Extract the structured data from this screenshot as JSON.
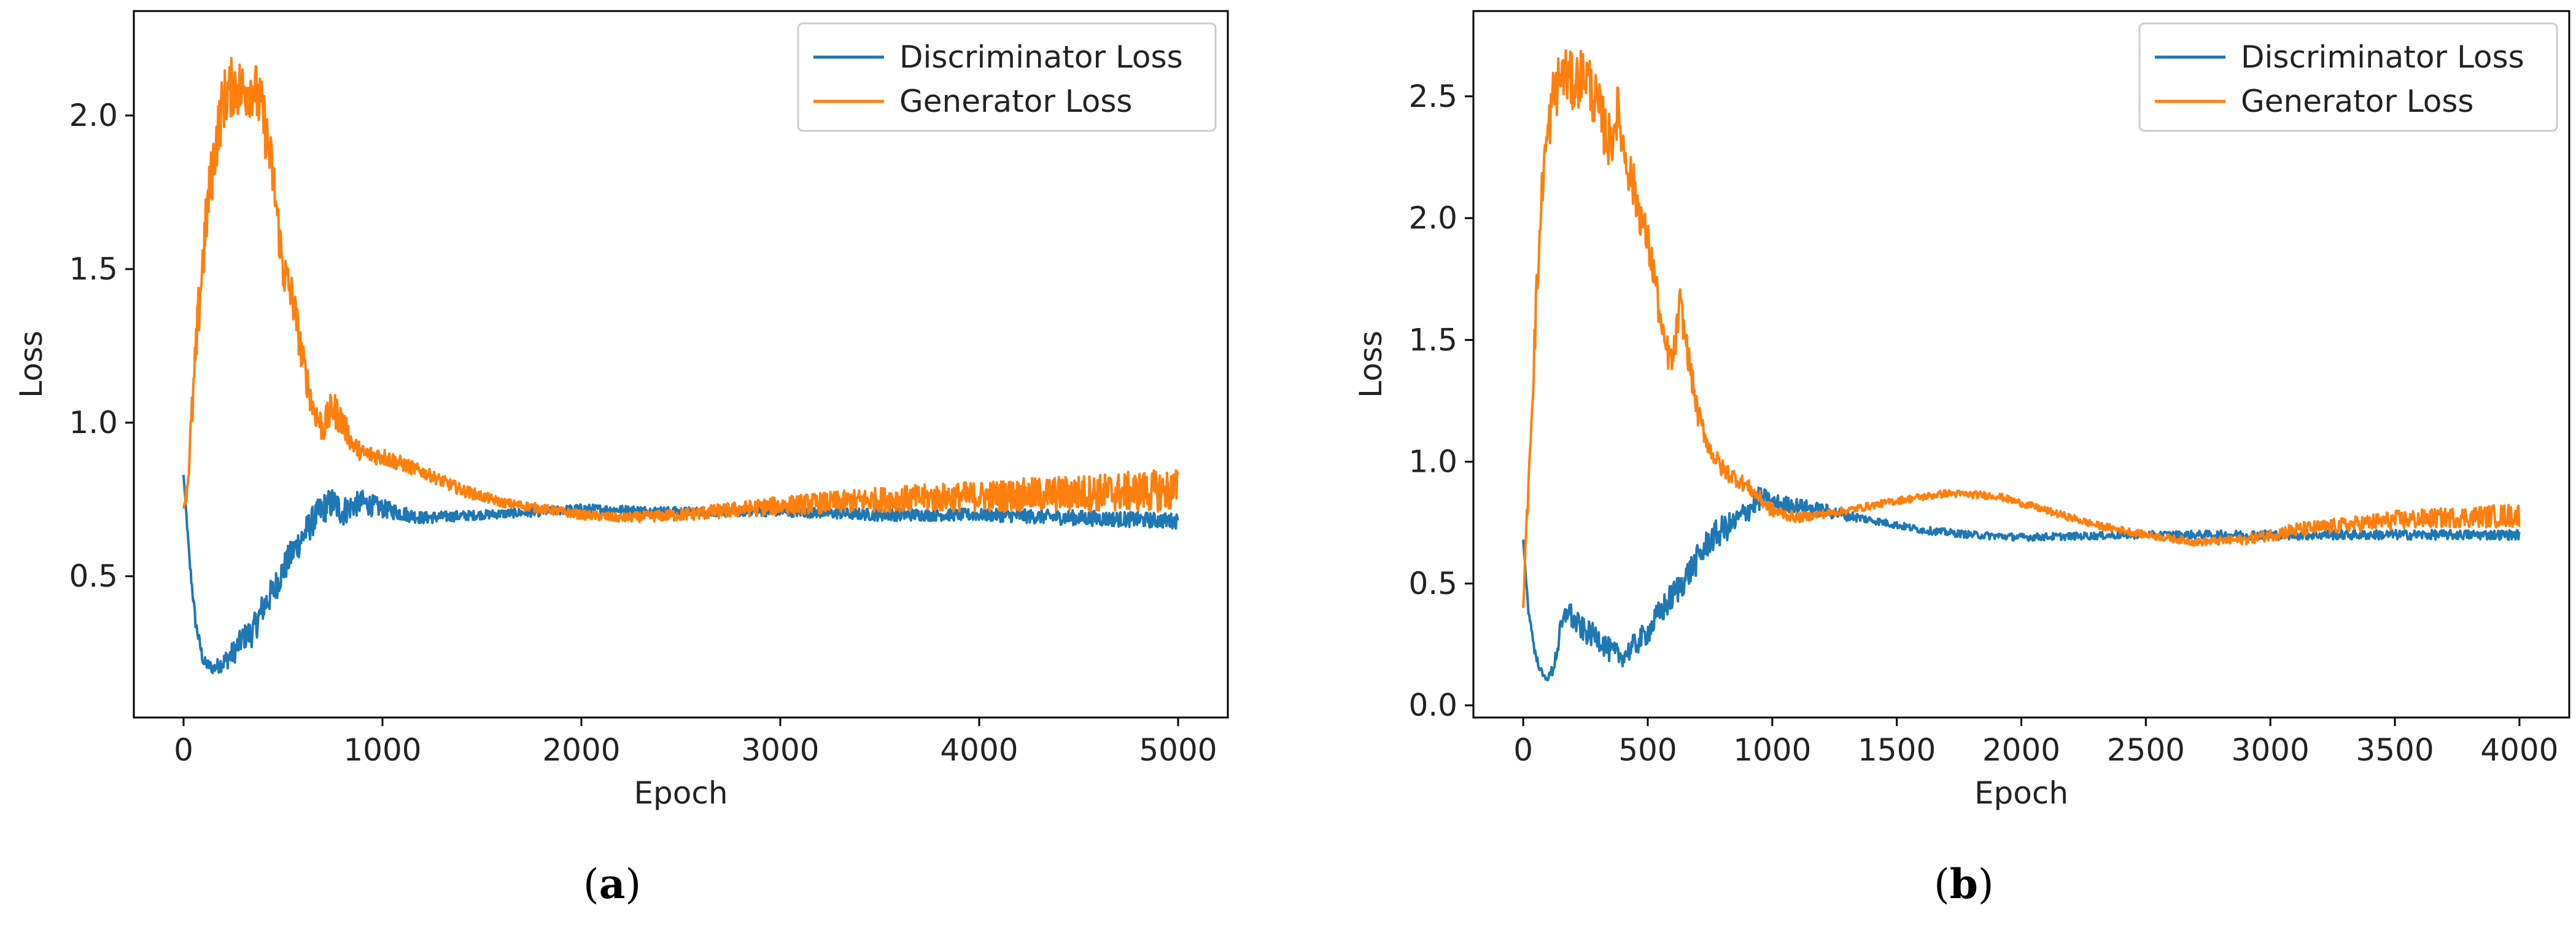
{
  "chart_data": [
    {
      "type": "line",
      "panel_label": "a",
      "xlabel": "Epoch",
      "ylabel": "Loss",
      "xlim": [
        -250,
        5250
      ],
      "ylim": [
        0.04,
        2.34
      ],
      "xticks": [
        0,
        1000,
        2000,
        3000,
        4000,
        5000
      ],
      "yticks": [
        0.5,
        1.0,
        1.5,
        2.0
      ],
      "ytick_labels": [
        "0.5",
        "1.0",
        "1.5",
        "2.0"
      ],
      "legend": {
        "position": "top-right",
        "entries": [
          "Discriminator Loss",
          "Generator Loss"
        ]
      },
      "series": [
        {
          "name": "Discriminator Loss",
          "color": "#1f77b4",
          "x": [
            0,
            30,
            60,
            100,
            150,
            200,
            250,
            300,
            350,
            400,
            450,
            500,
            550,
            600,
            650,
            700,
            750,
            800,
            850,
            900,
            1000,
            1200,
            1500,
            1800,
            2000,
            2500,
            3000,
            3500,
            4000,
            4500,
            5000
          ],
          "y": [
            0.83,
            0.55,
            0.35,
            0.22,
            0.2,
            0.22,
            0.25,
            0.3,
            0.32,
            0.4,
            0.45,
            0.52,
            0.58,
            0.63,
            0.68,
            0.72,
            0.74,
            0.71,
            0.73,
            0.74,
            0.72,
            0.69,
            0.7,
            0.71,
            0.72,
            0.71,
            0.71,
            0.7,
            0.7,
            0.69,
            0.68
          ],
          "noise": [
            0.0,
            0.02,
            0.02,
            0.02,
            0.02,
            0.03,
            0.04,
            0.04,
            0.05,
            0.05,
            0.05,
            0.05,
            0.05,
            0.05,
            0.05,
            0.05,
            0.05,
            0.05,
            0.04,
            0.04,
            0.03,
            0.02,
            0.015,
            0.015,
            0.015,
            0.015,
            0.015,
            0.02,
            0.02,
            0.025,
            0.025
          ]
        },
        {
          "name": "Generator Loss",
          "color": "#ff7f0e",
          "x": [
            0,
            20,
            40,
            80,
            120,
            160,
            200,
            250,
            300,
            350,
            400,
            450,
            500,
            550,
            600,
            650,
            700,
            750,
            800,
            850,
            900,
            1000,
            1200,
            1400,
            1600,
            1800,
            2000,
            2200,
            2500,
            3000,
            3500,
            4000,
            4500,
            5000
          ],
          "y": [
            0.72,
            0.8,
            1.0,
            1.4,
            1.7,
            1.9,
            2.05,
            2.1,
            2.08,
            2.1,
            2.0,
            1.8,
            1.5,
            1.4,
            1.2,
            1.05,
            0.98,
            1.05,
            1.0,
            0.93,
            0.9,
            0.89,
            0.84,
            0.78,
            0.74,
            0.72,
            0.7,
            0.69,
            0.7,
            0.73,
            0.75,
            0.76,
            0.77,
            0.78
          ],
          "noise": [
            0.0,
            0.05,
            0.07,
            0.1,
            0.1,
            0.1,
            0.1,
            0.1,
            0.1,
            0.1,
            0.1,
            0.09,
            0.08,
            0.07,
            0.06,
            0.05,
            0.05,
            0.06,
            0.05,
            0.03,
            0.03,
            0.03,
            0.02,
            0.02,
            0.015,
            0.015,
            0.015,
            0.015,
            0.02,
            0.03,
            0.04,
            0.05,
            0.06,
            0.07
          ]
        }
      ]
    },
    {
      "type": "line",
      "panel_label": "b",
      "xlabel": "Epoch",
      "ylabel": "Loss",
      "xlim": [
        -200,
        4200
      ],
      "ylim": [
        -0.05,
        2.85
      ],
      "xticks": [
        0,
        500,
        1000,
        1500,
        2000,
        2500,
        3000,
        3500,
        4000
      ],
      "yticks": [
        0.0,
        0.5,
        1.0,
        1.5,
        2.0,
        2.5
      ],
      "ytick_labels": [
        "0.0",
        "0.5",
        "1.0",
        "1.5",
        "2.0",
        "2.5"
      ],
      "legend": {
        "position": "top-right",
        "entries": [
          "Discriminator Loss",
          "Generator Loss"
        ]
      },
      "series": [
        {
          "name": "Discriminator Loss",
          "color": "#1f77b4",
          "x": [
            0,
            20,
            50,
            80,
            100,
            120,
            150,
            180,
            200,
            250,
            300,
            350,
            400,
            450,
            500,
            550,
            600,
            650,
            700,
            750,
            800,
            850,
            900,
            950,
            1000,
            1100,
            1200,
            1400,
            1600,
            1800,
            2000,
            2500,
            3000,
            3500,
            4000
          ],
          "y": [
            0.68,
            0.4,
            0.2,
            0.12,
            0.11,
            0.15,
            0.3,
            0.4,
            0.35,
            0.3,
            0.28,
            0.22,
            0.2,
            0.25,
            0.3,
            0.38,
            0.45,
            0.52,
            0.6,
            0.68,
            0.72,
            0.75,
            0.8,
            0.85,
            0.83,
            0.82,
            0.8,
            0.76,
            0.72,
            0.7,
            0.69,
            0.7,
            0.7,
            0.7,
            0.7
          ],
          "noise": [
            0.0,
            0.02,
            0.02,
            0.01,
            0.01,
            0.03,
            0.05,
            0.05,
            0.05,
            0.05,
            0.05,
            0.05,
            0.04,
            0.05,
            0.05,
            0.06,
            0.06,
            0.06,
            0.06,
            0.06,
            0.06,
            0.05,
            0.05,
            0.05,
            0.04,
            0.03,
            0.03,
            0.015,
            0.015,
            0.015,
            0.015,
            0.015,
            0.02,
            0.02,
            0.02
          ]
        },
        {
          "name": "Generator Loss",
          "color": "#ff7f0e",
          "x": [
            0,
            20,
            50,
            80,
            120,
            160,
            200,
            250,
            300,
            350,
            380,
            400,
            450,
            500,
            530,
            560,
            600,
            630,
            660,
            700,
            750,
            800,
            900,
            1000,
            1100,
            1300,
            1500,
            1700,
            1900,
            2100,
            2300,
            2500,
            2700,
            2900,
            3100,
            3300,
            3500,
            3700,
            4000
          ],
          "y": [
            0.4,
            0.9,
            1.6,
            2.2,
            2.5,
            2.6,
            2.55,
            2.6,
            2.45,
            2.3,
            2.45,
            2.3,
            2.1,
            1.9,
            1.75,
            1.5,
            1.4,
            1.65,
            1.45,
            1.2,
            1.05,
            0.97,
            0.9,
            0.8,
            0.77,
            0.8,
            0.84,
            0.87,
            0.86,
            0.8,
            0.74,
            0.7,
            0.67,
            0.68,
            0.72,
            0.74,
            0.76,
            0.77,
            0.78
          ],
          "noise": [
            0.0,
            0.08,
            0.1,
            0.1,
            0.12,
            0.12,
            0.12,
            0.12,
            0.12,
            0.12,
            0.1,
            0.1,
            0.1,
            0.08,
            0.08,
            0.07,
            0.07,
            0.07,
            0.06,
            0.05,
            0.04,
            0.04,
            0.03,
            0.03,
            0.02,
            0.015,
            0.015,
            0.015,
            0.015,
            0.015,
            0.015,
            0.015,
            0.015,
            0.02,
            0.03,
            0.03,
            0.04,
            0.04,
            0.05
          ]
        }
      ]
    }
  ],
  "captions": {
    "a": "a",
    "b": "b"
  }
}
